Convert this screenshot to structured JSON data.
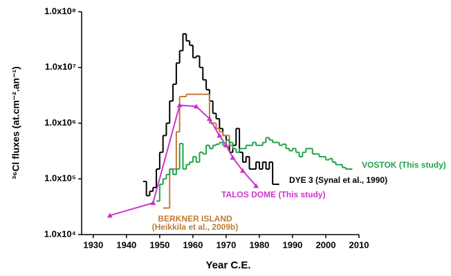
{
  "chart_data": {
    "type": "line",
    "x_label": "Year C.E.",
    "y_label": "³⁶Cl fluxes (at.cm⁻².an⁻¹)",
    "log_y": true,
    "xlim": [
      1926.5,
      2010
    ],
    "xticks": [
      1930,
      1940,
      1950,
      1960,
      1970,
      1980,
      1990,
      2000,
      2010
    ],
    "ylim": [
      10000,
      100000000
    ],
    "yticks": [
      {
        "value": 10000,
        "label": "1.0x10⁴"
      },
      {
        "value": 100000,
        "label": "1.0x10⁵"
      },
      {
        "value": 1000000,
        "label": "1.0x10⁶"
      },
      {
        "value": 10000000,
        "label": "1.0x10⁷"
      },
      {
        "value": 100000000,
        "label": "1.0x10⁸"
      }
    ],
    "series": [
      {
        "name": "DYE 3 (Synal et al., 1990)",
        "color": "#000000",
        "style": "step",
        "x": [
          1945,
          1946,
          1947,
          1948,
          1949,
          1950,
          1951,
          1952,
          1953,
          1954,
          1955,
          1956,
          1957,
          1958,
          1959,
          1960,
          1961,
          1962,
          1963,
          1964,
          1965,
          1966,
          1967,
          1968,
          1969,
          1970,
          1971,
          1972,
          1973,
          1974,
          1975,
          1976,
          1977,
          1978,
          1979,
          1980,
          1981,
          1982,
          1983,
          1984,
          1985
        ],
        "values": [
          90000,
          50000,
          60000,
          70000,
          150000,
          300000,
          600000,
          1000000,
          2500000,
          5000000,
          12000000,
          20000000,
          40000000,
          30000000,
          25000000,
          15000000,
          16000000,
          10000000,
          6000000,
          4000000,
          2500000,
          1500000,
          1200000,
          800000,
          600000,
          500000,
          300000,
          400000,
          800000,
          300000,
          200000,
          250000,
          150000,
          150000,
          200000,
          150000,
          200000,
          150000,
          200000,
          80000,
          80000
        ]
      },
      {
        "name": "BERKNER ISLAND",
        "source": "(Heikkila et al., 2009b)",
        "color": "#c07a35",
        "style": "step",
        "x": [
          1951,
          1952,
          1953,
          1954,
          1955,
          1956,
          1957,
          1958,
          1959,
          1960,
          1961,
          1962,
          1963,
          1964,
          1965,
          1966,
          1967,
          1968,
          1969,
          1970,
          1971
        ],
        "values": [
          30000,
          30000,
          150000,
          150000,
          700000,
          3000000,
          3000000,
          3300000,
          3300000,
          3300000,
          3300000,
          3300000,
          3300000,
          3300000,
          1000000,
          1000000,
          800000,
          700000,
          600000,
          600000,
          400000
        ]
      },
      {
        "name": "VOSTOK (This study)",
        "color": "#1fa24a",
        "style": "step",
        "x": [
          1949,
          1950,
          1951,
          1952,
          1953,
          1954,
          1955,
          1956,
          1957,
          1958,
          1959,
          1960,
          1961,
          1962,
          1963,
          1964,
          1965,
          1966,
          1967,
          1968,
          1969,
          1970,
          1971,
          1972,
          1973,
          1974,
          1975,
          1976,
          1977,
          1978,
          1979,
          1980,
          1981,
          1982,
          1983,
          1984,
          1985,
          1986,
          1987,
          1988,
          1989,
          1990,
          1991,
          1992,
          1993,
          1994,
          1995,
          1996,
          1997,
          1998,
          1999,
          2000,
          2001,
          2002,
          2003,
          2004,
          2005,
          2006,
          2007
        ],
        "values": [
          40000,
          80000,
          100000,
          120000,
          150000,
          120000,
          150000,
          430000,
          150000,
          180000,
          200000,
          250000,
          200000,
          300000,
          280000,
          400000,
          350000,
          400000,
          420000,
          450000,
          400000,
          500000,
          450000,
          350000,
          300000,
          350000,
          350000,
          400000,
          400000,
          450000,
          400000,
          400000,
          450000,
          550000,
          500000,
          450000,
          450000,
          400000,
          420000,
          350000,
          320000,
          350000,
          300000,
          250000,
          300000,
          350000,
          350000,
          280000,
          280000,
          250000,
          250000,
          220000,
          230000,
          200000,
          180000,
          180000,
          160000,
          150000,
          150000
        ]
      },
      {
        "name": "TALOS DOME (This study)",
        "color": "#cc33cc",
        "style": "markers",
        "x": [
          1935,
          1948,
          1956,
          1961,
          1965,
          1968,
          1970,
          1972,
          1975,
          1979
        ],
        "values": [
          22000,
          37000,
          2100000,
          2000000,
          1200000,
          600000,
          400000,
          240000,
          140000,
          75000
        ]
      }
    ]
  }
}
